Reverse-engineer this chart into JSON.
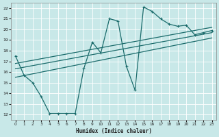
{
  "xlabel": "Humidex (Indice chaleur)",
  "bg_color": "#c8e8e8",
  "line_color": "#1a6b6b",
  "xlim": [
    -0.5,
    23.5
  ],
  "ylim": [
    11.5,
    22.5
  ],
  "xticks": [
    0,
    1,
    2,
    3,
    4,
    5,
    6,
    7,
    8,
    9,
    10,
    11,
    12,
    13,
    14,
    15,
    16,
    17,
    18,
    19,
    20,
    21,
    22,
    23
  ],
  "yticks": [
    12,
    13,
    14,
    15,
    16,
    17,
    18,
    19,
    20,
    21,
    22
  ],
  "data_x": [
    0,
    1,
    2,
    3,
    4,
    5,
    6,
    7,
    8,
    9,
    10,
    11,
    12,
    13,
    14,
    15,
    16,
    17,
    18,
    19,
    20,
    21,
    22,
    23
  ],
  "data_y": [
    17.5,
    15.7,
    15.0,
    13.7,
    12.1,
    12.1,
    12.1,
    12.1,
    16.3,
    18.8,
    17.8,
    21.0,
    20.8,
    16.5,
    14.3,
    22.1,
    21.7,
    21.0,
    20.5,
    20.3,
    20.4,
    19.5,
    19.7,
    19.9
  ],
  "line1_x": [
    0,
    23
  ],
  "line1_y": [
    16.8,
    20.2
  ],
  "line2_x": [
    0,
    23
  ],
  "line2_y": [
    16.3,
    19.7
  ],
  "line3_x": [
    0,
    23
  ],
  "line3_y": [
    15.5,
    19.2
  ]
}
